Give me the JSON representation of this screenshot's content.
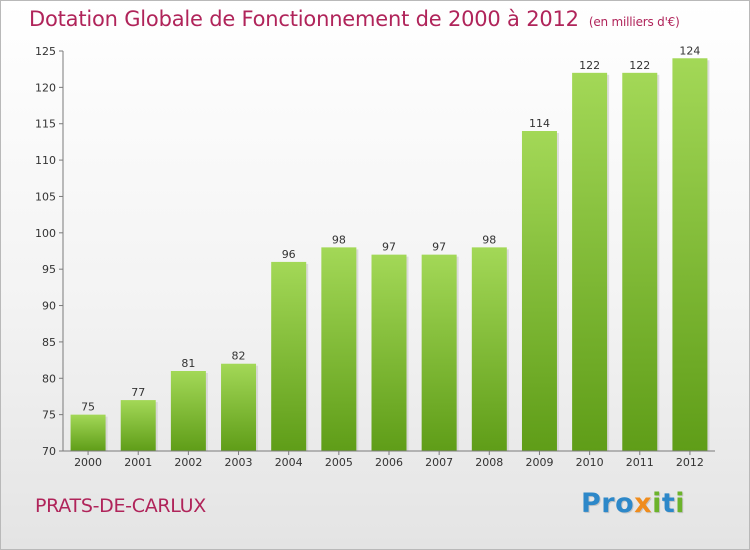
{
  "header": {
    "title": "Dotation Globale de Fonctionnement de 2000 à 2012",
    "subtitle": "(en milliers d'€)"
  },
  "footer": {
    "commune": "PRATS-DE-CARLUX",
    "brand": {
      "p": "Pro",
      "x": "x",
      "i": "i",
      "t": "t",
      "i2": "i"
    }
  },
  "colors": {
    "title": "#b0245a",
    "bar_light": "#a3d857",
    "bar_dark": "#5f9d18",
    "axis": "#7a7a7a"
  },
  "chart_data": {
    "type": "bar",
    "categories": [
      "2000",
      "2001",
      "2002",
      "2003",
      "2004",
      "2005",
      "2006",
      "2007",
      "2008",
      "2009",
      "2010",
      "2011",
      "2012"
    ],
    "values": [
      75,
      77,
      81,
      82,
      96,
      98,
      97,
      97,
      98,
      114,
      122,
      122,
      124
    ],
    "title": "Dotation Globale de Fonctionnement de 2000 à 2012",
    "subtitle": "(en milliers d'€)",
    "ylim": [
      70,
      125
    ],
    "yticks": [
      70,
      75,
      80,
      85,
      90,
      95,
      100,
      105,
      110,
      115,
      120,
      125
    ],
    "grid": false,
    "legend": "none"
  }
}
